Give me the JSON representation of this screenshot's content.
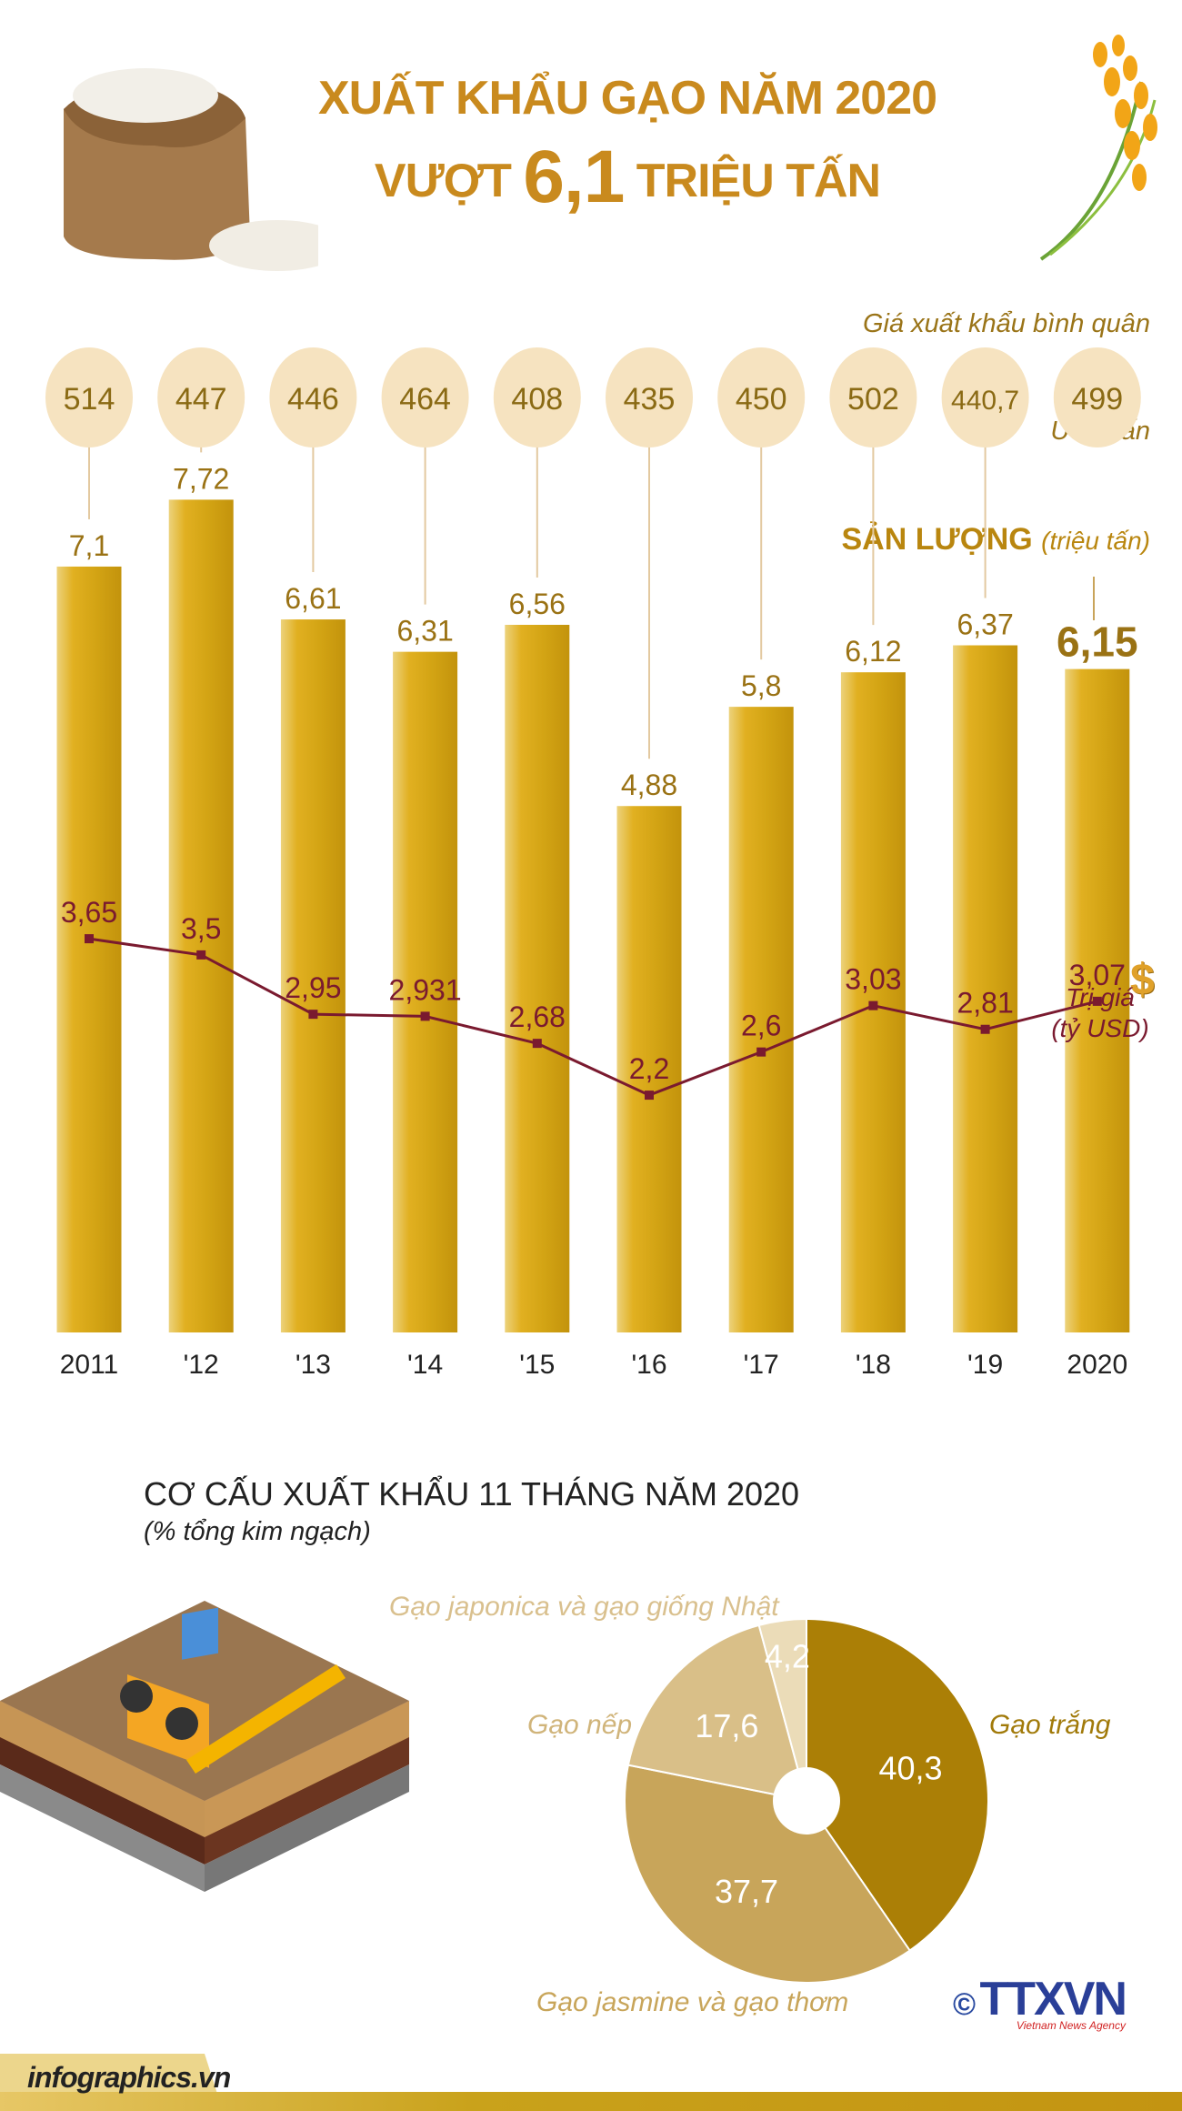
{
  "header": {
    "title_line1": "XUẤT KHẨU GẠO NĂM 2020",
    "title_line2_pre": "VƯỢT",
    "title_line2_big": "6,1",
    "title_line2_post": "TRIỆU TẤN"
  },
  "colors": {
    "title": "#c98a1e",
    "bar": "#d9a817",
    "bubble": "#f6e3c0",
    "line": "#7a1a2f",
    "pie": [
      "#ab7f06",
      "#c8a55a",
      "#d9bf88",
      "#ebdcb8"
    ]
  },
  "chart_data": [
    {
      "type": "bar",
      "categories": [
        "2011",
        "'12",
        "'13",
        "'14",
        "'15",
        "'16",
        "'17",
        "'18",
        "'19",
        "2020"
      ],
      "series": [
        {
          "name": "SẢN LƯỢNG (triệu tấn)",
          "values": [
            7.1,
            7.72,
            6.61,
            6.31,
            6.56,
            4.88,
            5.8,
            6.12,
            6.37,
            6.15
          ],
          "labels": [
            "7,1",
            "7,72",
            "6,61",
            "6,31",
            "6,56",
            "4,88",
            "5,8",
            "6,12",
            "6,37",
            "6,15"
          ]
        },
        {
          "name": "Trị giá (tỷ USD)",
          "type": "line",
          "values": [
            3.65,
            3.5,
            2.95,
            2.931,
            2.68,
            2.2,
            2.6,
            3.03,
            2.81,
            3.07
          ],
          "labels": [
            "3,65",
            "3,5",
            "2,95",
            "2,931",
            "2,68",
            "2,2",
            "2,6",
            "3,03",
            "2,81",
            "3,07"
          ]
        },
        {
          "name": "Giá xuất khẩu bình quân USD/tấn",
          "type": "bubble",
          "values": [
            514,
            447,
            446,
            464,
            408,
            435,
            450,
            502,
            440.7,
            499
          ],
          "labels": [
            "514",
            "447",
            "446",
            "464",
            "408",
            "435",
            "450",
            "502",
            "440,7",
            "499"
          ]
        }
      ],
      "ylim": [
        0,
        12
      ]
    },
    {
      "type": "pie",
      "title": "CƠ CẤU XUẤT KHẨU 11 THÁNG NĂM 2020",
      "subtitle": "(% tổng kim ngạch)",
      "categories": [
        "Gạo trắng",
        "Gạo jasmine và gạo thơm",
        "Gạo nếp",
        "Gạo japonica và gạo giống Nhật"
      ],
      "values": [
        40.3,
        37.7,
        17.6,
        4.2
      ],
      "labels": [
        "40,3",
        "37,7",
        "17,6",
        "4,2"
      ],
      "donut": true
    }
  ],
  "annotations": {
    "price_caption": "Giá xuất khẩu bình quân",
    "price_unit": "USD/tấn",
    "volume_caption": "SẢN LƯỢNG",
    "volume_unit": "(triệu tấn)",
    "value_caption_1": "Trị giá",
    "value_caption_2": "(tỷ USD)"
  },
  "footer": {
    "site": "infographics.vn",
    "copyright": "©",
    "logo": "TTXVN",
    "logo_sub": "Vietnam News Agency"
  }
}
